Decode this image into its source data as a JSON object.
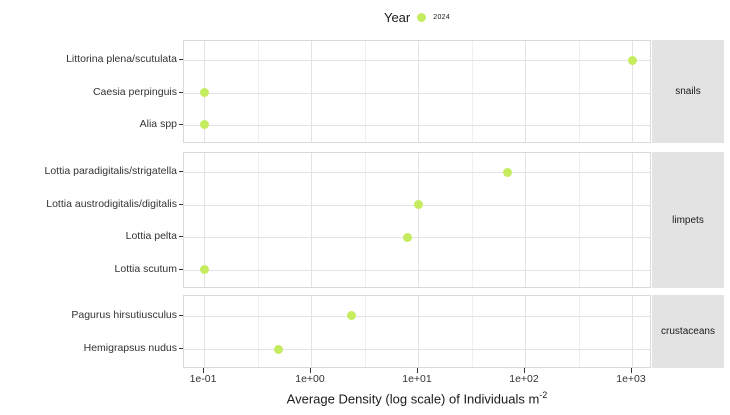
{
  "legend": {
    "title": "Year",
    "entries": [
      {
        "label": "2024",
        "color": "#c5ec5e"
      }
    ]
  },
  "x_axis": {
    "title": "Average Density (log scale) of Individuals m",
    "title_superscript": "-2",
    "ticks": [
      {
        "value": 0.1,
        "label": "1e-01"
      },
      {
        "value": 1,
        "label": "1e+00"
      },
      {
        "value": 10,
        "label": "1e+01"
      },
      {
        "value": 100,
        "label": "1e+02"
      },
      {
        "value": 1000,
        "label": "1e+03"
      }
    ]
  },
  "chart_data": {
    "type": "scatter",
    "subtype": "horizontal-dot-plot",
    "x_scale": "log10",
    "xlim": [
      0.06,
      1500
    ],
    "xlabel": "Average Density (log scale) of Individuals m^-2",
    "ylabel": "",
    "legend_position": "top",
    "grid": "on",
    "series_name": "2024",
    "facets": [
      {
        "label": "snails",
        "points": [
          {
            "species": "Littorina plena/scutulata",
            "value": 1000
          },
          {
            "species": "Caesia perpinguis",
            "value": 0.1
          },
          {
            "species": "Alia spp",
            "value": 0.1
          }
        ]
      },
      {
        "label": "limpets",
        "points": [
          {
            "species": "Lottia paradigitalis/strigatella",
            "value": 68
          },
          {
            "species": "Lottia austrodigitalis/digitalis",
            "value": 10
          },
          {
            "species": "Lottia pelta",
            "value": 8
          },
          {
            "species": "Lottia scutum",
            "value": 0.1
          }
        ]
      },
      {
        "label": "crustaceans",
        "points": [
          {
            "species": "Pagurus hirsutiusculus",
            "value": 2.4
          },
          {
            "species": "Hemigrapsus nudus",
            "value": 0.5
          }
        ]
      }
    ]
  },
  "colors": {
    "point": "#c5ec5e",
    "grid_major": "#e3e3e3",
    "grid_minor": "#efefef",
    "panel_border": "#d9d9d9",
    "strip_bg": "#e3e3e3",
    "axis_text": "#333333",
    "title_text": "#1a1a1a"
  }
}
